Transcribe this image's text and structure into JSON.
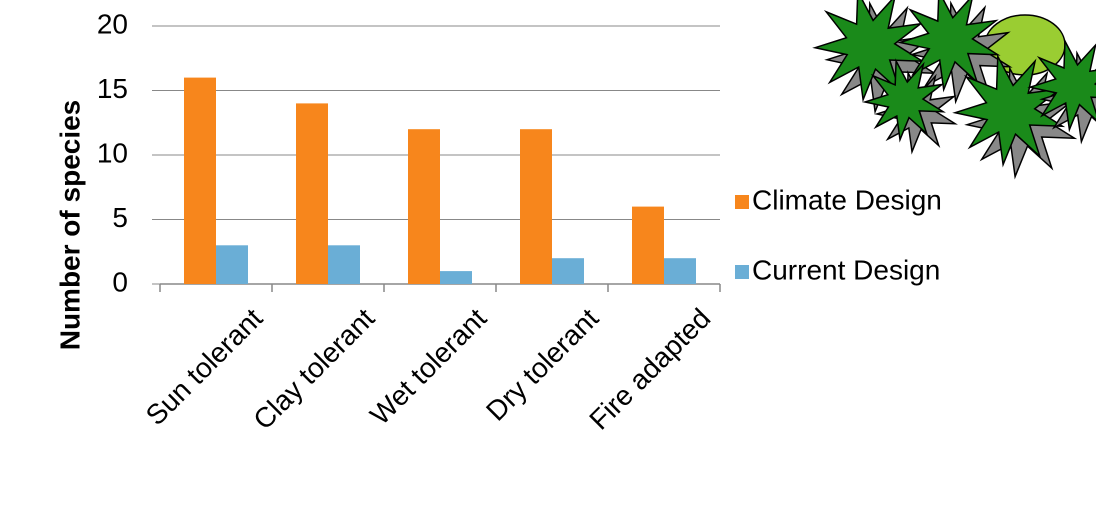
{
  "chart_data": {
    "type": "bar",
    "y_label": "Number of species",
    "categories": [
      "Sun tolerant",
      "Clay tolerant",
      "Wet tolerant",
      "Dry tolerant",
      "Fire adapted"
    ],
    "series": [
      {
        "name": "Climate Design",
        "color": "#f7861c",
        "values": [
          16,
          14,
          12,
          12,
          6
        ]
      },
      {
        "name": "Current Design",
        "color": "#6aaed6",
        "values": [
          3,
          3,
          1,
          2,
          2
        ]
      }
    ],
    "ylim": [
      0,
      20
    ],
    "yticks": [
      0,
      5,
      10,
      15,
      20
    ],
    "grid": true,
    "legend": "right"
  }
}
